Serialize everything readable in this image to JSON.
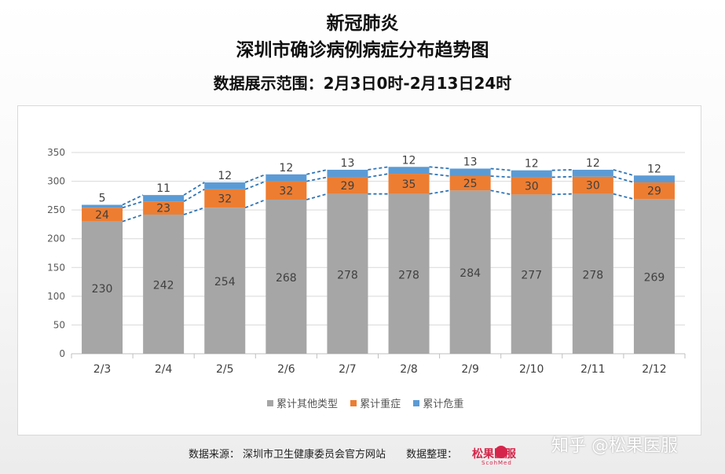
{
  "title_line1": "新冠肺炎",
  "title_line2": "深圳市确诊病例病症分布趋势图",
  "title_line3": "数据展示范围：2月3日0时-2月13日24时",
  "footer": {
    "source_label": "数据来源：",
    "source_value": "深圳市卫生健康委员会官方网站",
    "organizer_label": "数据整理：",
    "logo_text": "松果医服",
    "logo_sub": "ScohMed"
  },
  "watermark": "知乎 @松果医服",
  "colors": {
    "other": "#a6a6a6",
    "severe": "#ed7d31",
    "critical": "#5b9bd5",
    "connector": "#2e75b6"
  },
  "chart_data": {
    "type": "bar",
    "stacked": true,
    "categories": [
      "2/3",
      "2/4",
      "2/5",
      "2/6",
      "2/7",
      "2/8",
      "2/9",
      "2/10",
      "2/11",
      "2/12"
    ],
    "series": [
      {
        "name": "累计其他类型",
        "values": [
          230,
          242,
          254,
          268,
          278,
          278,
          284,
          277,
          278,
          269
        ]
      },
      {
        "name": "累计重症",
        "values": [
          24,
          23,
          32,
          32,
          29,
          35,
          25,
          30,
          30,
          29
        ]
      },
      {
        "name": "累计危重",
        "values": [
          5,
          11,
          12,
          12,
          13,
          12,
          13,
          12,
          12,
          12
        ]
      }
    ],
    "ylim": [
      0,
      350
    ],
    "yticks": [
      0,
      50,
      100,
      150,
      200,
      250,
      300,
      350
    ],
    "grid": true,
    "legend_position": "bottom",
    "series_lines": "dashed connectors between stacked segment boundaries"
  }
}
